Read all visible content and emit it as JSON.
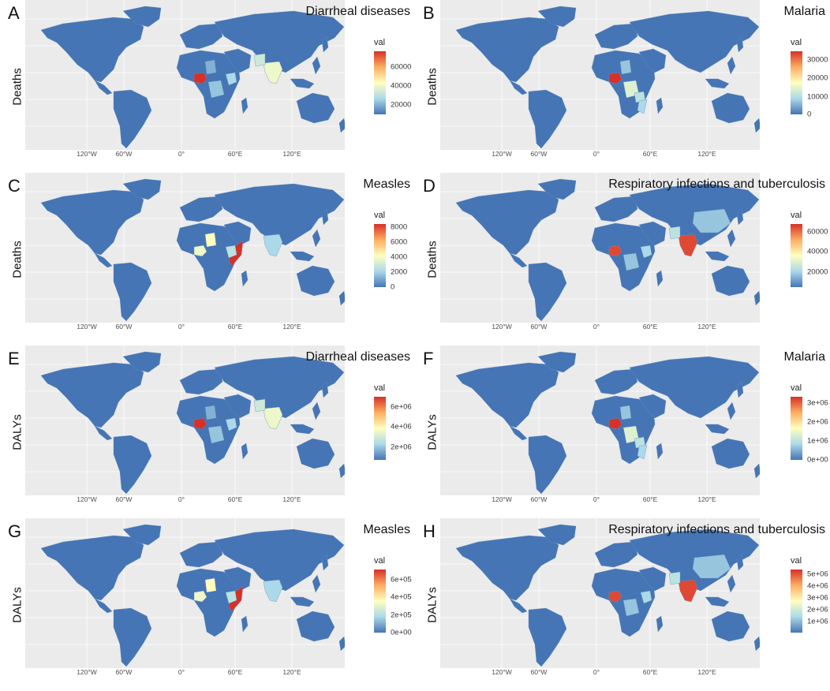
{
  "colors": {
    "low": "#4575b4",
    "mid_low": "#abd9e9",
    "mid": "#ffffbf",
    "mid_high": "#fdae61",
    "high": "#d73027",
    "panel_background": "#ebebeb"
  },
  "x_axis_labels": [
    "120°W",
    "60°W",
    "0°",
    "60°E",
    "120°E"
  ],
  "legend_title": "val",
  "panels": [
    {
      "letter": "A",
      "measure": "Deaths",
      "title": "Diarrheal diseases",
      "legend_ticks": [
        "60000",
        "40000",
        "20000"
      ],
      "tick_fracs": [
        0.75,
        0.45,
        0.15
      ],
      "hot_regions": [
        {
          "region": "nigeria",
          "level": 1.0
        },
        {
          "region": "india",
          "level": 0.45
        },
        {
          "region": "pakistan",
          "level": 0.35
        },
        {
          "region": "ethiopia",
          "level": 0.25
        },
        {
          "region": "drc",
          "level": 0.2
        },
        {
          "region": "chad",
          "level": 0.15
        }
      ]
    },
    {
      "letter": "B",
      "measure": "Deaths",
      "title": "Malaria",
      "legend_ticks": [
        "30000",
        "20000",
        "10000",
        "0"
      ],
      "tick_fracs": [
        0.86,
        0.57,
        0.28,
        0.0
      ],
      "hot_regions": [
        {
          "region": "nigeria",
          "level": 1.0
        },
        {
          "region": "drc",
          "level": 0.4
        },
        {
          "region": "tanzania",
          "level": 0.3
        },
        {
          "region": "mozambique",
          "level": 0.25
        },
        {
          "region": "chad",
          "level": 0.2
        }
      ]
    },
    {
      "letter": "C",
      "measure": "Deaths",
      "title": "Measles",
      "legend_ticks": [
        "8000",
        "6000",
        "4000",
        "2000",
        "0"
      ],
      "tick_fracs": [
        0.95,
        0.71,
        0.47,
        0.24,
        0.0
      ],
      "hot_regions": [
        {
          "region": "somalia",
          "level": 1.0
        },
        {
          "region": "nigeria",
          "level": 0.45
        },
        {
          "region": "chad",
          "level": 0.5
        },
        {
          "region": "ethiopia",
          "level": 0.3
        },
        {
          "region": "india",
          "level": 0.25
        }
      ]
    },
    {
      "letter": "D",
      "measure": "Deaths",
      "title": "Respiratory infections and tuberculosis",
      "legend_ticks": [
        "60000",
        "40000",
        "20000"
      ],
      "tick_fracs": [
        0.88,
        0.56,
        0.24
      ],
      "hot_regions": [
        {
          "region": "india",
          "level": 0.95
        },
        {
          "region": "nigeria",
          "level": 0.95
        },
        {
          "region": "pakistan",
          "level": 0.3
        },
        {
          "region": "china",
          "level": 0.2
        },
        {
          "region": "ethiopia",
          "level": 0.25
        },
        {
          "region": "drc",
          "level": 0.2
        }
      ]
    },
    {
      "letter": "E",
      "measure": "DALYs",
      "title": "Diarrheal diseases",
      "legend_ticks": [
        "6e+06",
        "4e+06",
        "2e+06"
      ],
      "tick_fracs": [
        0.84,
        0.52,
        0.2
      ],
      "hot_regions": [
        {
          "region": "nigeria",
          "level": 1.0
        },
        {
          "region": "india",
          "level": 0.45
        },
        {
          "region": "pakistan",
          "level": 0.35
        },
        {
          "region": "ethiopia",
          "level": 0.25
        },
        {
          "region": "drc",
          "level": 0.2
        },
        {
          "region": "chad",
          "level": 0.15
        }
      ]
    },
    {
      "letter": "F",
      "measure": "DALYs",
      "title": "Malaria",
      "legend_ticks": [
        "3e+06",
        "2e+06",
        "1e+06",
        "0e+00"
      ],
      "tick_fracs": [
        0.9,
        0.6,
        0.3,
        0.0
      ],
      "hot_regions": [
        {
          "region": "nigeria",
          "level": 1.0
        },
        {
          "region": "drc",
          "level": 0.4
        },
        {
          "region": "tanzania",
          "level": 0.3
        },
        {
          "region": "mozambique",
          "level": 0.25
        },
        {
          "region": "chad",
          "level": 0.2
        }
      ]
    },
    {
      "letter": "G",
      "measure": "DALYs",
      "title": "Measles",
      "legend_ticks": [
        "6e+05",
        "4e+05",
        "2e+05",
        "0e+00"
      ],
      "tick_fracs": [
        0.84,
        0.56,
        0.28,
        0.0
      ],
      "hot_regions": [
        {
          "region": "somalia",
          "level": 1.0
        },
        {
          "region": "nigeria",
          "level": 0.45
        },
        {
          "region": "chad",
          "level": 0.5
        },
        {
          "region": "ethiopia",
          "level": 0.3
        },
        {
          "region": "india",
          "level": 0.25
        }
      ]
    },
    {
      "letter": "H",
      "measure": "DALYs",
      "title": "Respiratory infections and tuberculosis",
      "legend_ticks": [
        "5e+06",
        "4e+06",
        "3e+06",
        "2e+06",
        "1e+06"
      ],
      "tick_fracs": [
        0.93,
        0.74,
        0.55,
        0.36,
        0.17
      ],
      "hot_regions": [
        {
          "region": "india",
          "level": 0.95
        },
        {
          "region": "nigeria",
          "level": 0.95
        },
        {
          "region": "pakistan",
          "level": 0.3
        },
        {
          "region": "china",
          "level": 0.2
        },
        {
          "region": "ethiopia",
          "level": 0.25
        },
        {
          "region": "drc",
          "level": 0.2
        }
      ]
    }
  ]
}
